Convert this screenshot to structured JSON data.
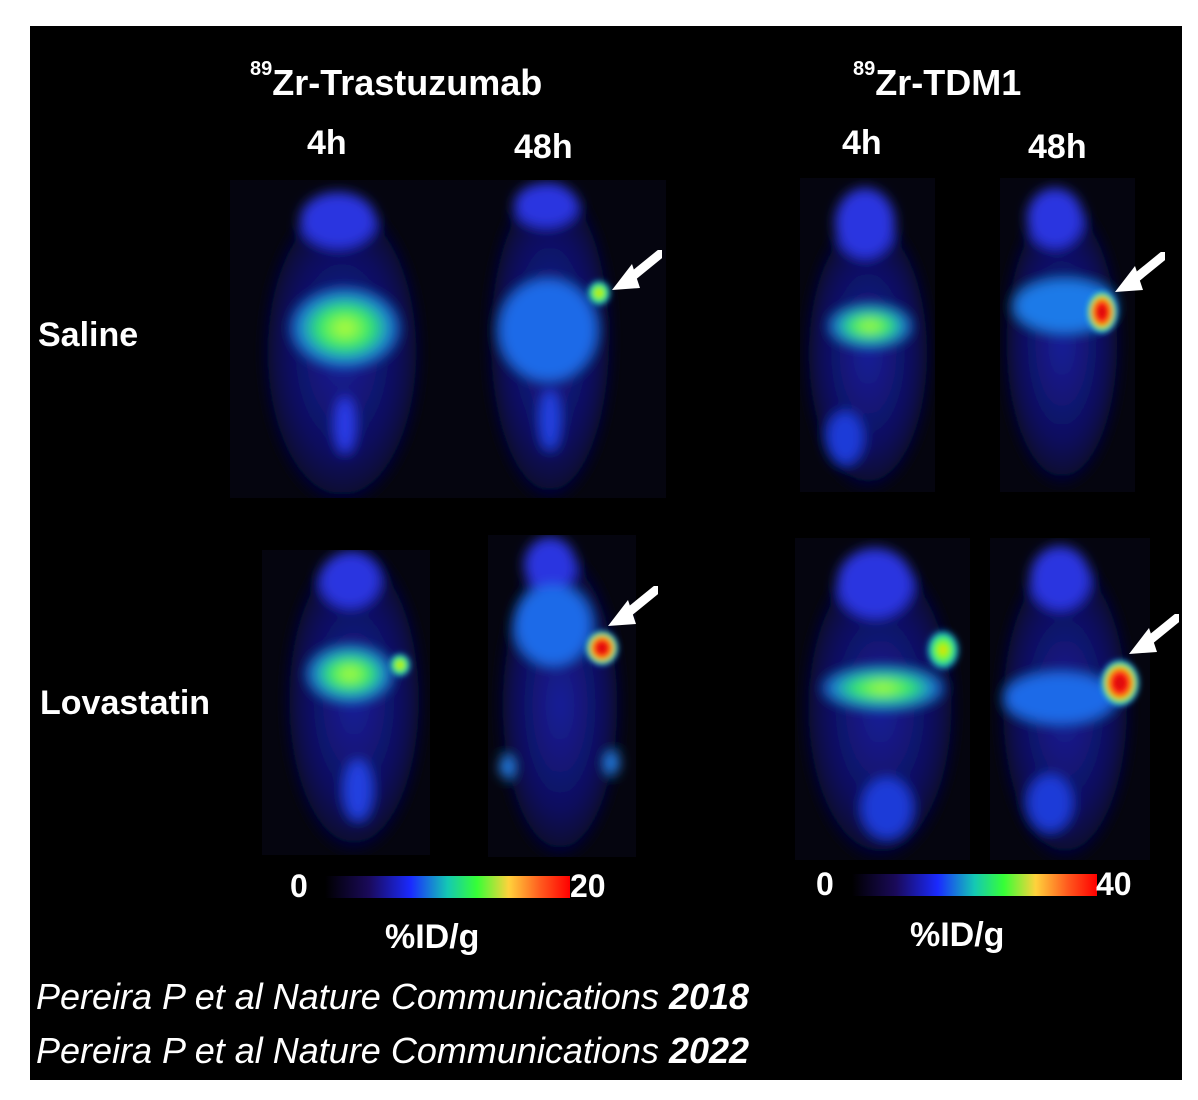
{
  "figure": {
    "headers": {
      "left": {
        "isotope": "89",
        "name": "Zr-Trastuzumab"
      },
      "right": {
        "isotope": "89",
        "name": "Zr-TDM1"
      }
    },
    "timepoints": [
      "4h",
      "48h",
      "4h",
      "48h"
    ],
    "rows": [
      "Saline",
      "Lovastatin"
    ],
    "colorbars": [
      {
        "min": "0",
        "max": "20",
        "unit": "%ID/g"
      },
      {
        "min": "0",
        "max": "40",
        "unit": "%ID/g"
      }
    ],
    "citations": [
      {
        "text": "Pereira P et al Nature Communications ",
        "year": "2018"
      },
      {
        "text": "Pereira P et al Nature Communications ",
        "year": "2022"
      }
    ]
  }
}
